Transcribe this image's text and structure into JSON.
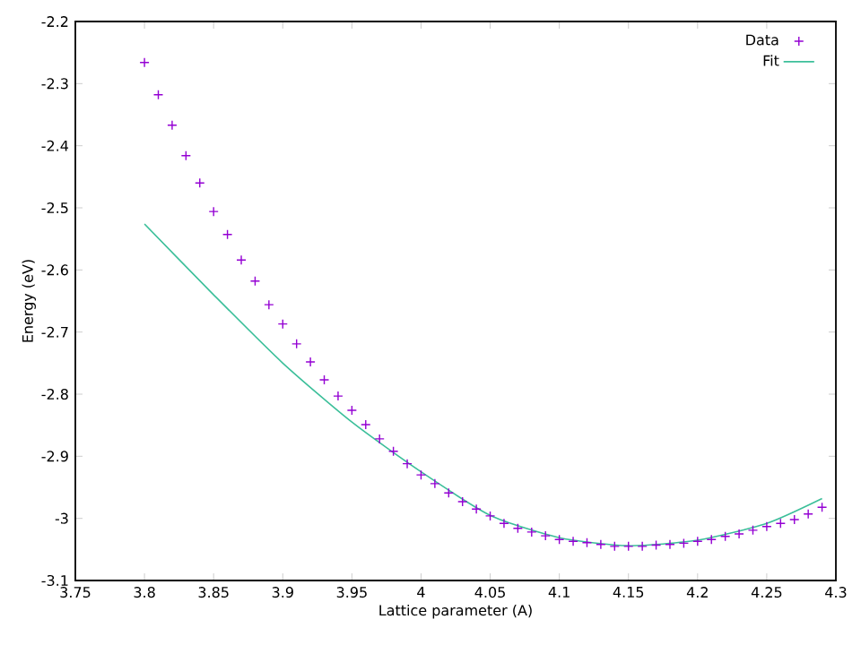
{
  "chart_data": {
    "type": "scatter",
    "xlabel": "Lattice parameter (A)",
    "ylabel": "Energy (eV)",
    "xlim": [
      3.75,
      4.3
    ],
    "ylim": [
      -3.1,
      -2.2
    ],
    "xticks": [
      3.75,
      3.8,
      3.85,
      3.9,
      3.95,
      4,
      4.05,
      4.1,
      4.15,
      4.2,
      4.25,
      4.3
    ],
    "yticks": [
      -3.1,
      -3,
      -2.9,
      -2.8,
      -2.7,
      -2.6,
      -2.5,
      -2.4,
      -2.3,
      -2.2
    ],
    "legend": "top right",
    "grid": false,
    "series": [
      {
        "name": "Data",
        "marker": "cross",
        "color": "#9400d3",
        "x": [
          3.8,
          3.81,
          3.82,
          3.83,
          3.84,
          3.85,
          3.86,
          3.87,
          3.88,
          3.89,
          3.9,
          3.91,
          3.92,
          3.93,
          3.94,
          3.95,
          3.96,
          3.97,
          3.98,
          3.99,
          4.0,
          4.01,
          4.02,
          4.03,
          4.04,
          4.05,
          4.06,
          4.07,
          4.08,
          4.09,
          4.1,
          4.11,
          4.12,
          4.13,
          4.14,
          4.15,
          4.16,
          4.17,
          4.18,
          4.19,
          4.2,
          4.21,
          4.22,
          4.23,
          4.24,
          4.25,
          4.26,
          4.27,
          4.28,
          4.29
        ],
        "values": [
          -2.266,
          -2.318,
          -2.367,
          -2.416,
          -2.46,
          -2.506,
          -2.543,
          -2.584,
          -2.618,
          -2.656,
          -2.687,
          -2.719,
          -2.748,
          -2.777,
          -2.803,
          -2.826,
          -2.849,
          -2.872,
          -2.892,
          -2.912,
          -2.93,
          -2.944,
          -2.959,
          -2.973,
          -2.985,
          -2.996,
          -3.008,
          -3.016,
          -3.022,
          -3.028,
          -3.034,
          -3.037,
          -3.039,
          -3.042,
          -3.045,
          -3.045,
          -3.045,
          -3.043,
          -3.042,
          -3.04,
          -3.037,
          -3.034,
          -3.029,
          -3.025,
          -3.019,
          -3.013,
          -3.008,
          -3.002,
          -2.993,
          -2.982
        ]
      },
      {
        "name": "Fit",
        "type": "line",
        "marker": "none",
        "line_style": "solid",
        "color": "#3cbf9a",
        "x": [
          3.8,
          3.85,
          3.9,
          3.95,
          4.0,
          4.05,
          4.1,
          4.15,
          4.2,
          4.25,
          4.29
        ],
        "values": [
          -2.526,
          -2.64,
          -2.75,
          -2.845,
          -2.925,
          -2.995,
          -3.031,
          -3.044,
          -3.035,
          -3.008,
          -2.968
        ]
      }
    ]
  }
}
